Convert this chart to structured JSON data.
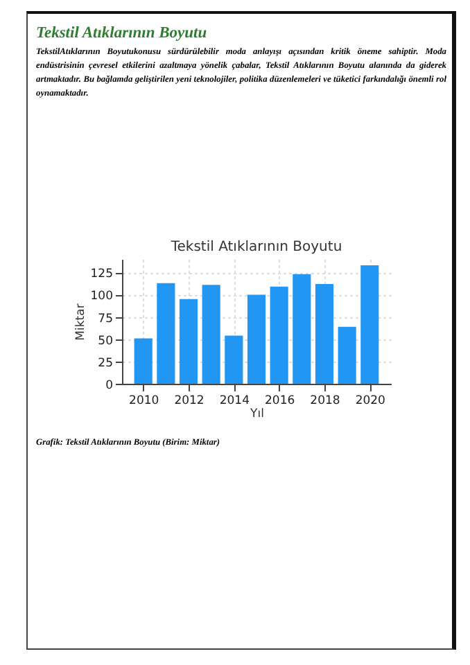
{
  "chart_data": {
    "type": "bar",
    "title": "Tekstil Atıklarının Boyutu",
    "xlabel": "Yıl",
    "ylabel": "Miktar",
    "annotations": [
      "Tekstil Atıklarının Boyutu",
      "TekstilAtıklarının Boyutukonusu sürdürülebilir moda anlayışı açısından kritik öneme sahiptir. Moda endüstrisinin çevresel etkilerini azaltmaya yönelik çabalar, Tekstil Atıklarının Boyutu alanında da giderek artmaktadır. Bu bağlamda geliştirilen yeni teknolojiler, politika düzenlemeleri ve tüketici farkındalığı önemli rol oynamaktadır.",
      "Grafik: Tekstil Atıklarının Boyutu (Birim: Miktar)"
    ],
    "x": [
      2010,
      2011,
      2012,
      2013,
      2014,
      2015,
      2016,
      2017,
      2018,
      2019,
      2020
    ],
    "values": [
      51,
      113,
      95,
      111,
      54,
      100,
      109,
      123,
      112,
      64,
      133
    ],
    "color": "#2196f3",
    "xlim": [
      2009.06,
      2020.94
    ],
    "xticks": [
      2010,
      2012,
      2014,
      2016,
      2018,
      2020
    ],
    "ylim": [
      0,
      140
    ],
    "yticks": [
      0,
      25,
      50,
      75,
      100,
      125
    ],
    "grid": true
  }
}
